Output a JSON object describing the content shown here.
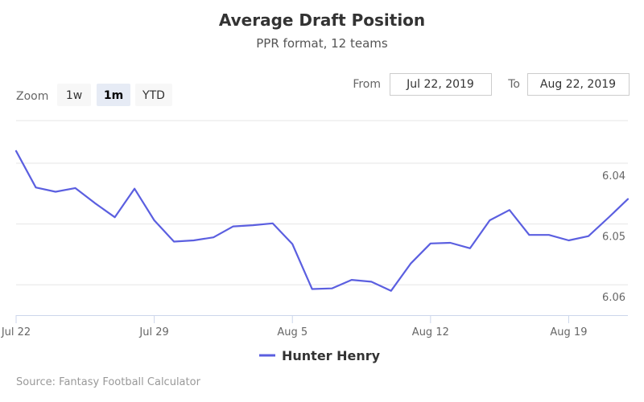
{
  "header": {
    "title": "Average Draft Position",
    "subtitle": "PPR format, 12 teams"
  },
  "range_selector": {
    "zoom_label": "Zoom",
    "buttons": [
      {
        "label": "1w",
        "active": false
      },
      {
        "label": "1m",
        "active": true
      },
      {
        "label": "YTD",
        "active": false
      }
    ],
    "from_label": "From",
    "from_value": "Jul 22, 2019",
    "to_label": "To",
    "to_value": "Aug 22, 2019"
  },
  "legend": {
    "series_name": "Hunter Henry"
  },
  "credits": "Source: Fantasy Football Calculator",
  "colors": {
    "series": "#5b5fe0",
    "grid": "#e6e6e6"
  },
  "chart_data": {
    "type": "line",
    "title": "Average Draft Position",
    "subtitle": "PPR format, 12 teams",
    "y_reversed": true,
    "y_axis_side": "right",
    "ylim": [
      6.033,
      6.065
    ],
    "yticks": [
      6.04,
      6.05,
      6.06
    ],
    "ytick_labels": [
      "6.04",
      "6.05",
      "6.06"
    ],
    "x_range": [
      "2019-07-22",
      "2019-08-22"
    ],
    "xticks": [
      "2019-07-22",
      "2019-07-29",
      "2019-08-05",
      "2019-08-12",
      "2019-08-19"
    ],
    "xtick_labels": [
      "Jul 22",
      "Jul 29",
      "Aug 5",
      "Aug 12",
      "Aug 19"
    ],
    "grid": true,
    "legend_position": "bottom-center",
    "series": [
      {
        "name": "Hunter Henry",
        "x": [
          "2019-07-22",
          "2019-07-23",
          "2019-07-24",
          "2019-07-25",
          "2019-07-26",
          "2019-07-27",
          "2019-07-28",
          "2019-07-29",
          "2019-07-30",
          "2019-07-31",
          "2019-08-01",
          "2019-08-02",
          "2019-08-03",
          "2019-08-04",
          "2019-08-05",
          "2019-08-06",
          "2019-08-07",
          "2019-08-08",
          "2019-08-09",
          "2019-08-10",
          "2019-08-11",
          "2019-08-12",
          "2019-08-13",
          "2019-08-14",
          "2019-08-15",
          "2019-08-16",
          "2019-08-17",
          "2019-08-18",
          "2019-08-19",
          "2019-08-20",
          "2019-08-21",
          "2019-08-22"
        ],
        "y": [
          6.038,
          6.044,
          6.0447,
          6.0441,
          6.0466,
          6.0489,
          6.0442,
          6.0494,
          6.0529,
          6.0527,
          6.0522,
          6.0504,
          6.0502,
          6.0499,
          6.0533,
          6.0607,
          6.0606,
          6.0592,
          6.0595,
          6.061,
          6.0565,
          6.0532,
          6.0531,
          6.054,
          6.0494,
          6.0477,
          6.0518,
          6.0518,
          6.0527,
          6.052,
          6.049,
          6.0459
        ]
      }
    ]
  }
}
